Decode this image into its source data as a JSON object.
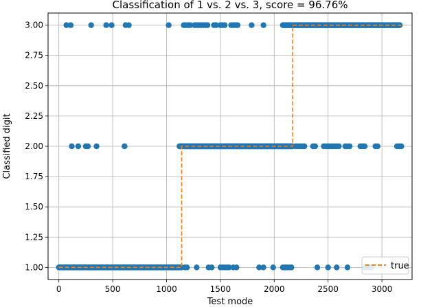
{
  "chart_data": {
    "type": "scatter",
    "title": "Classification of 1 vs. 2 vs. 3, score = 96.76%",
    "xlabel": "Test mode",
    "ylabel": "Classified digit",
    "xlim": [
      -100,
      3280
    ],
    "ylim": [
      0.9,
      3.1
    ],
    "xticks": [
      0,
      500,
      1000,
      1500,
      2000,
      2500,
      3000
    ],
    "yticks": [
      1.0,
      1.25,
      1.5,
      1.75,
      2.0,
      2.25,
      2.5,
      2.75,
      3.0
    ],
    "xtick_labels": [
      "0",
      "500",
      "1000",
      "1500",
      "2000",
      "2500",
      "3000"
    ],
    "ytick_labels": [
      "1.00",
      "1.25",
      "1.50",
      "1.75",
      "2.00",
      "2.25",
      "2.50",
      "2.75",
      "3.00"
    ],
    "grid": true,
    "legend_position": "bottom-right",
    "colors": {
      "predicted": "#1f77b4",
      "true": "#ff7f0e",
      "grid": "#b0b0b0"
    },
    "series": [
      {
        "kind": "scatter",
        "color": "#1f77b4",
        "segments": [
          {
            "y": 1,
            "x_start": 0,
            "x_end": 1140,
            "step": 6
          },
          {
            "y": 2,
            "x_start": 1120,
            "x_end": 2170,
            "step": 6
          },
          {
            "y": 3,
            "x_start": 2080,
            "x_end": 3170,
            "step": 6
          }
        ],
        "points": [
          {
            "x": 1170,
            "y": 1
          },
          {
            "x": 1190,
            "y": 1
          },
          {
            "x": 1280,
            "y": 1
          },
          {
            "x": 1390,
            "y": 1
          },
          {
            "x": 1420,
            "y": 1
          },
          {
            "x": 1500,
            "y": 1
          },
          {
            "x": 1520,
            "y": 1
          },
          {
            "x": 1540,
            "y": 1
          },
          {
            "x": 1560,
            "y": 1
          },
          {
            "x": 1580,
            "y": 1
          },
          {
            "x": 1620,
            "y": 1
          },
          {
            "x": 1650,
            "y": 1
          },
          {
            "x": 1860,
            "y": 1
          },
          {
            "x": 1900,
            "y": 1
          },
          {
            "x": 1990,
            "y": 1
          },
          {
            "x": 2080,
            "y": 1
          },
          {
            "x": 2100,
            "y": 1
          },
          {
            "x": 2120,
            "y": 1
          },
          {
            "x": 2140,
            "y": 1
          },
          {
            "x": 2160,
            "y": 1
          },
          {
            "x": 2400,
            "y": 1
          },
          {
            "x": 2500,
            "y": 1
          },
          {
            "x": 2580,
            "y": 1
          },
          {
            "x": 2680,
            "y": 1
          },
          {
            "x": 2840,
            "y": 1
          },
          {
            "x": 2860,
            "y": 1
          },
          {
            "x": 2880,
            "y": 1
          },
          {
            "x": 2900,
            "y": 1
          },
          {
            "x": 120,
            "y": 2
          },
          {
            "x": 180,
            "y": 2
          },
          {
            "x": 250,
            "y": 2
          },
          {
            "x": 270,
            "y": 2
          },
          {
            "x": 350,
            "y": 2
          },
          {
            "x": 610,
            "y": 2
          },
          {
            "x": 2200,
            "y": 2
          },
          {
            "x": 2220,
            "y": 2
          },
          {
            "x": 2240,
            "y": 2
          },
          {
            "x": 2260,
            "y": 2
          },
          {
            "x": 2280,
            "y": 2
          },
          {
            "x": 2360,
            "y": 2
          },
          {
            "x": 2380,
            "y": 2
          },
          {
            "x": 2460,
            "y": 2
          },
          {
            "x": 2480,
            "y": 2
          },
          {
            "x": 2500,
            "y": 2
          },
          {
            "x": 2520,
            "y": 2
          },
          {
            "x": 2540,
            "y": 2
          },
          {
            "x": 2560,
            "y": 2
          },
          {
            "x": 2580,
            "y": 2
          },
          {
            "x": 2600,
            "y": 2
          },
          {
            "x": 2660,
            "y": 2
          },
          {
            "x": 2680,
            "y": 2
          },
          {
            "x": 2700,
            "y": 2
          },
          {
            "x": 2800,
            "y": 2
          },
          {
            "x": 2820,
            "y": 2
          },
          {
            "x": 2840,
            "y": 2
          },
          {
            "x": 2940,
            "y": 2
          },
          {
            "x": 2960,
            "y": 2
          },
          {
            "x": 3140,
            "y": 2
          },
          {
            "x": 3160,
            "y": 2
          },
          {
            "x": 3180,
            "y": 2
          },
          {
            "x": 70,
            "y": 3
          },
          {
            "x": 110,
            "y": 3
          },
          {
            "x": 300,
            "y": 3
          },
          {
            "x": 440,
            "y": 3
          },
          {
            "x": 490,
            "y": 3
          },
          {
            "x": 620,
            "y": 3
          },
          {
            "x": 650,
            "y": 3
          },
          {
            "x": 1020,
            "y": 3
          },
          {
            "x": 1160,
            "y": 3
          },
          {
            "x": 1180,
            "y": 3
          },
          {
            "x": 1200,
            "y": 3
          },
          {
            "x": 1220,
            "y": 3
          },
          {
            "x": 1260,
            "y": 3
          },
          {
            "x": 1280,
            "y": 3
          },
          {
            "x": 1300,
            "y": 3
          },
          {
            "x": 1320,
            "y": 3
          },
          {
            "x": 1340,
            "y": 3
          },
          {
            "x": 1360,
            "y": 3
          },
          {
            "x": 1380,
            "y": 3
          },
          {
            "x": 1440,
            "y": 3
          },
          {
            "x": 1460,
            "y": 3
          },
          {
            "x": 1500,
            "y": 3
          },
          {
            "x": 1520,
            "y": 3
          },
          {
            "x": 1540,
            "y": 3
          },
          {
            "x": 1600,
            "y": 3
          },
          {
            "x": 1620,
            "y": 3
          },
          {
            "x": 1640,
            "y": 3
          },
          {
            "x": 1660,
            "y": 3
          },
          {
            "x": 1790,
            "y": 3
          },
          {
            "x": 1900,
            "y": 3
          }
        ]
      },
      {
        "kind": "step-line",
        "name": "true",
        "color": "#ff7f0e",
        "dashed": true,
        "x": [
          0,
          1140,
          1140,
          2170,
          2170,
          3180
        ],
        "y": [
          1,
          1,
          2,
          2,
          3,
          3
        ]
      }
    ]
  }
}
